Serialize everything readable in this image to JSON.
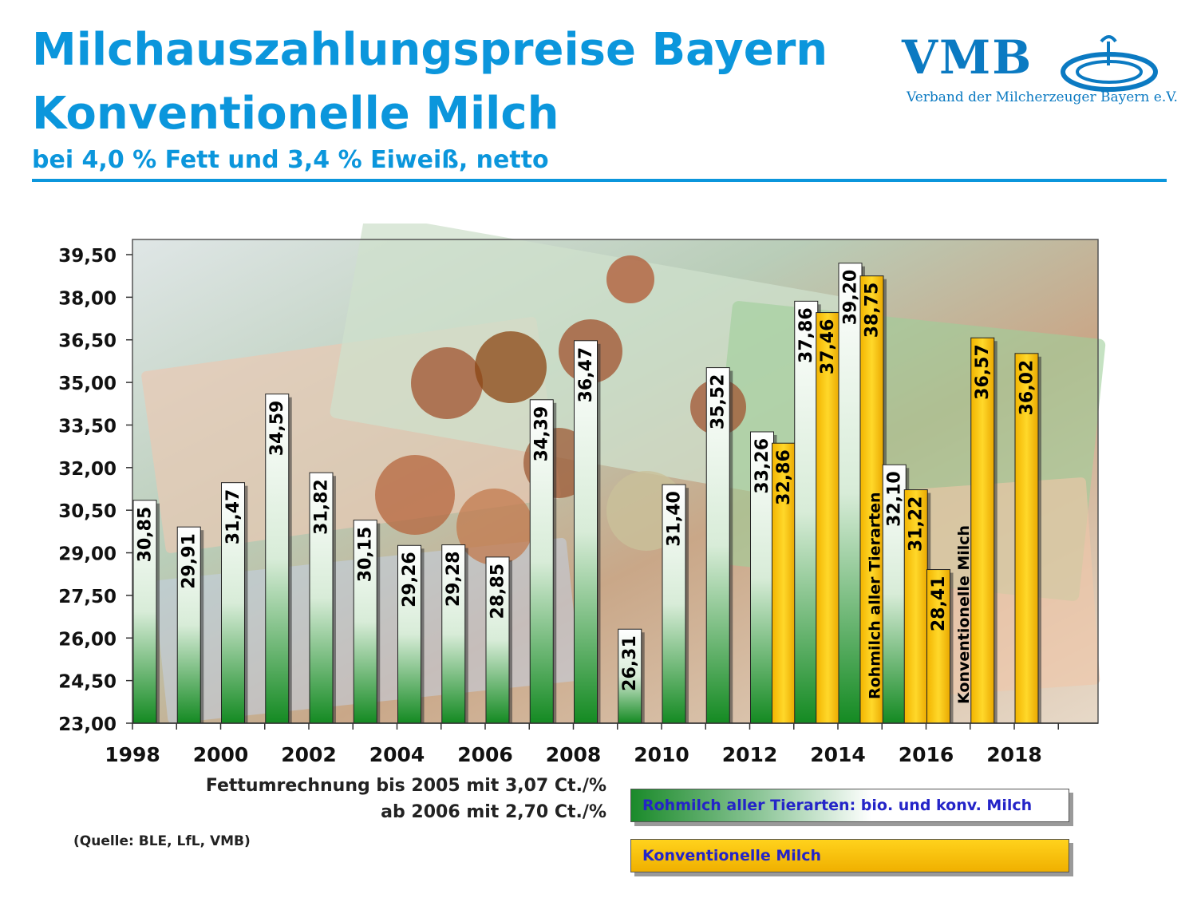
{
  "header": {
    "title_line1": "Milchauszahlungspreise Bayern",
    "title_line2": "Konventionelle Milch",
    "subtitle": "bei 4,0 % Fett und 3,4 % Eiweiß, netto"
  },
  "logo": {
    "name": "VMB",
    "tagline": "Verband der Milcherzeuger Bayern e.V."
  },
  "colors": {
    "title_blue": "#0b96dc",
    "green_bar": "#1a8a2a",
    "yellow_bar": "#f5bf00",
    "legend_text": "#2424c8"
  },
  "chart_data": {
    "type": "bar",
    "ylim": [
      23,
      39.5
    ],
    "yticks": [
      "23,00",
      "24,50",
      "26,00",
      "27,50",
      "29,00",
      "30,50",
      "32,00",
      "33,50",
      "35,00",
      "36,50",
      "38,00",
      "39,50"
    ],
    "ytick_values": [
      23,
      24.5,
      26,
      27.5,
      29,
      30.5,
      32,
      33.5,
      35,
      36.5,
      38,
      39.5
    ],
    "x_labels": [
      "1998",
      "2000",
      "2002",
      "2004",
      "2006",
      "2008",
      "2010",
      "2012",
      "2014",
      "2016",
      "2018"
    ],
    "categories": [
      "1998",
      "1999",
      "2000",
      "2001",
      "2002",
      "2003",
      "2004",
      "2005",
      "2006",
      "2007",
      "2008",
      "2009",
      "2010",
      "2011",
      "2012",
      "2013",
      "2014",
      "2015",
      "2016",
      "2017",
      "2018"
    ],
    "series": [
      {
        "name": "Rohmilch aller Tierarten: bio. und konv. Milch",
        "values": [
          30.85,
          29.91,
          31.47,
          34.59,
          31.82,
          30.15,
          29.26,
          29.28,
          28.85,
          34.39,
          36.47,
          26.31,
          31.4,
          35.52,
          33.26,
          37.86,
          39.2,
          32.1,
          null,
          null,
          null
        ],
        "labels": [
          "30,85",
          "29,91",
          "31,47",
          "34,59",
          "31,82",
          "30,15",
          "29,26",
          "29,28",
          "28,85",
          "34,39",
          "36,47",
          "26,31",
          "31,40",
          "35,52",
          "33,26",
          "37,86",
          "39,20",
          "32,10",
          "",
          "",
          ""
        ]
      },
      {
        "name": "Konventionelle Milch",
        "values": [
          null,
          null,
          null,
          null,
          null,
          null,
          null,
          null,
          null,
          null,
          null,
          null,
          null,
          null,
          32.86,
          37.46,
          38.75,
          31.22,
          28.41,
          36.57,
          36.02
        ],
        "labels": [
          "",
          "",
          "",
          "",
          "",
          "",
          "",
          "",
          "",
          "",
          "",
          "",
          "",
          "",
          "32,86",
          "37,46",
          "38,75",
          "31,22",
          "28,41",
          "36,57",
          "36,02"
        ]
      }
    ],
    "annotations": [
      "Rohmilch aller Tierarten",
      "Konventionelle Milch"
    ]
  },
  "footer": {
    "note_line1": "Fettumrechnung bis 2005 mit 3,07 Ct./%",
    "note_line2": "ab 2006 mit 2,70 Ct./%",
    "source": "(Quelle: BLE, LfL, VMB)"
  },
  "legend": {
    "item1": "Rohmilch aller Tierarten: bio. und konv. Milch",
    "item2": "Konventionelle Milch"
  }
}
